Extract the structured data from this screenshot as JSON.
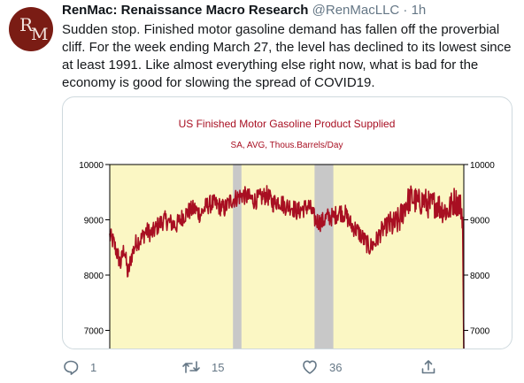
{
  "tweet": {
    "avatar_text": [
      "R",
      "M"
    ],
    "author_name": "RenMac: Renaissance Macro Research",
    "handle": "@RenMacLLC",
    "dot": "·",
    "time": "1h",
    "text": "Sudden stop. Finished motor gasoline demand has fallen off the proverbial cliff. For the week ending March 27, the level has declined to its lowest since at least 1991. Like almost everything else right now, what is bad for the economy is good for slowing the spread of COVID19."
  },
  "actions": {
    "reply_count": "1",
    "retweet_count": "15",
    "like_count": "36"
  },
  "icons": {
    "reply": "reply-icon",
    "retweet": "retweet-icon",
    "like": "heart-icon",
    "share": "share-icon"
  },
  "chart_data": {
    "type": "line",
    "title": "US Finished Motor Gasoline Product Supplied",
    "subtitle": "SA, AVG, Thous.Barrels/Day",
    "y_ticks_left": [
      "10000",
      "9000",
      "8000",
      "7000"
    ],
    "y_ticks_right": [
      "10000",
      "9000",
      "8000",
      "7000"
    ],
    "ylim": [
      6650,
      10050
    ],
    "x_range_years": [
      1991,
      2020.3
    ],
    "recessions": [
      [
        2001.2,
        2001.9
      ],
      [
        2007.95,
        2009.5
      ]
    ],
    "series": [
      {
        "x": [
          1991.0,
          1991.3,
          1991.6,
          1991.9,
          1992.2,
          1992.5,
          1992.8,
          1993.2,
          1993.6,
          1994.0,
          1994.5,
          1995.0,
          1995.5,
          1996.0,
          1996.5,
          1997.0,
          1997.5,
          1998.0,
          1998.5,
          1999.0,
          1999.5,
          2000.0,
          2000.5,
          2001.0,
          2001.5,
          2002.0,
          2002.5,
          2003.0,
          2003.5,
          2004.0,
          2004.5,
          2005.0,
          2005.5,
          2006.0,
          2006.5,
          2007.0,
          2007.5,
          2008.0,
          2008.5,
          2009.0,
          2009.5,
          2010.0,
          2010.5,
          2011.0,
          2011.5,
          2012.0,
          2012.5,
          2013.0,
          2013.5,
          2014.0,
          2014.5,
          2015.0,
          2015.5,
          2016.0,
          2016.5,
          2017.0,
          2017.5,
          2018.0,
          2018.5,
          2019.0,
          2019.5,
          2019.9,
          2020.1,
          2020.2,
          2020.3
        ],
        "values": [
          8700,
          8600,
          8400,
          8200,
          8500,
          8000,
          8350,
          8600,
          8650,
          8800,
          8750,
          8900,
          9000,
          8950,
          8900,
          9050,
          9150,
          9200,
          9100,
          9250,
          9300,
          9250,
          9200,
          9350,
          9400,
          9450,
          9400,
          9350,
          9400,
          9450,
          9300,
          9350,
          9250,
          9250,
          9150,
          9200,
          9250,
          9000,
          8950,
          9050,
          9050,
          9150,
          9100,
          8900,
          8800,
          8650,
          8500,
          8600,
          8800,
          8900,
          8900,
          9000,
          9300,
          9400,
          9300,
          9350,
          9250,
          9300,
          9200,
          9150,
          9350,
          9300,
          9200,
          9050,
          6650
        ]
      }
    ]
  }
}
